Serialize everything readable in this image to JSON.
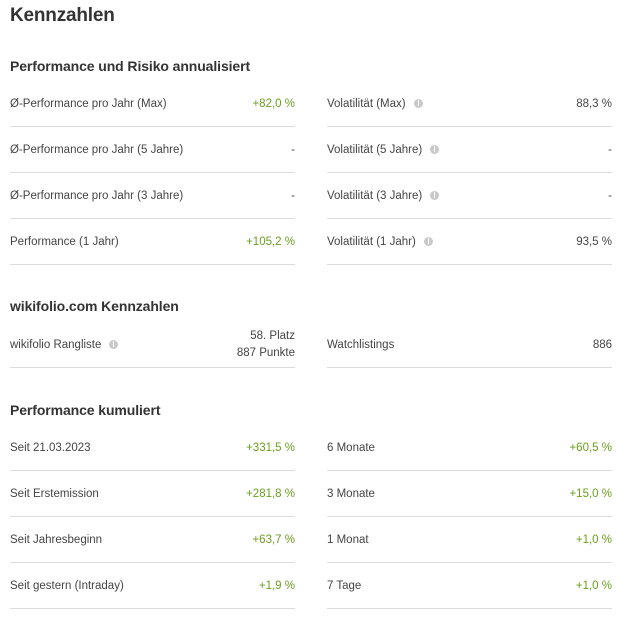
{
  "title": "Kennzahlen",
  "performance_risk": {
    "heading": "Performance und Risiko annualisiert",
    "left": [
      {
        "label": "Ø-Performance pro Jahr (Max)",
        "value": "+82,0 %"
      },
      {
        "label": "Ø-Performance pro Jahr (5 Jahre)",
        "value": "-"
      },
      {
        "label": "Ø-Performance pro Jahr (3 Jahre)",
        "value": "-"
      },
      {
        "label": "Performance (1 Jahr)",
        "value": "+105,2 %"
      }
    ],
    "right": [
      {
        "label": "Volatilität (Max)",
        "value": "88,3 %",
        "icon": "info-icon"
      },
      {
        "label": "Volatilität (5 Jahre)",
        "value": "-",
        "icon": "info-icon"
      },
      {
        "label": "Volatilität (3 Jahre)",
        "value": "-",
        "icon": "info-icon"
      },
      {
        "label": "Volatilität (1 Jahr)",
        "value": "93,5 %",
        "icon": "info-icon"
      }
    ]
  },
  "wikifolio_kennzahlen": {
    "heading": "wikifolio.com Kennzahlen",
    "rangliste": {
      "label": "wikifolio Rangliste",
      "place": "58. Platz",
      "points": "887 Punkte",
      "icon": "info-icon"
    },
    "watchlistings": {
      "label": "Watchlistings",
      "value": "886"
    }
  },
  "performance_cumulative": {
    "heading": "Performance kumuliert",
    "left": [
      {
        "label": "Seit 21.03.2023",
        "value": "+331,5 %"
      },
      {
        "label": "Seit Erstemission",
        "value": "+281,8 %"
      },
      {
        "label": "Seit Jahresbeginn",
        "value": "+63,7 %"
      },
      {
        "label": "Seit gestern (Intraday)",
        "value": "+1,9 %"
      }
    ],
    "right": [
      {
        "label": "6 Monate",
        "value": "+60,5 %"
      },
      {
        "label": "3 Monate",
        "value": "+15,0 %"
      },
      {
        "label": "1 Monat",
        "value": "+1,0 %"
      },
      {
        "label": "7 Tage",
        "value": "+1,0 %"
      }
    ]
  },
  "colors": {
    "positive": "#6a9e1f",
    "divider": "#dcdcdc",
    "icon": "#c9c9c9"
  }
}
